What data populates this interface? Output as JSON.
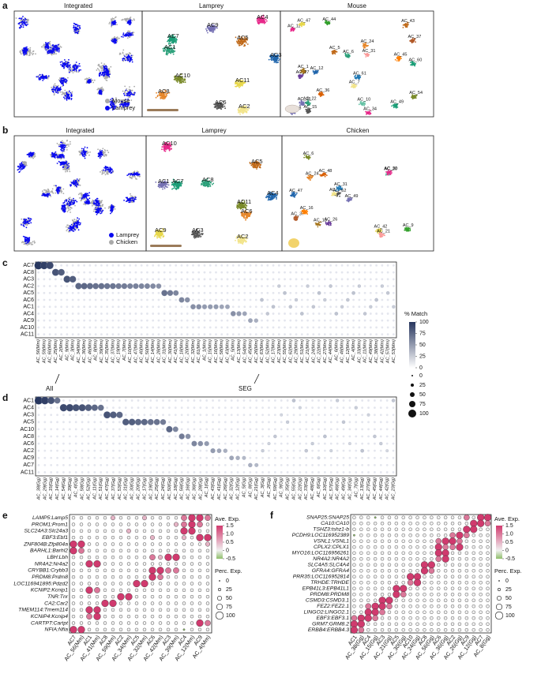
{
  "a": {
    "letter": "a",
    "titles": [
      "Integrated",
      "Lamprey",
      "Mouse"
    ],
    "legend": [
      "Mouse",
      "Lamprey"
    ],
    "lamprey_labels": [
      "AC4",
      "AC9",
      "AC7",
      "AC1",
      "AC5",
      "AC3",
      "AC10",
      "AC8",
      "AC11",
      "AC6",
      "AC2"
    ],
    "mouse_labels": [
      "AC_11",
      "AC_26",
      "AC_60",
      "AC_22",
      "AC_43",
      "AC_12",
      "AC_54",
      "AC_24",
      "AC_47",
      "AC_15",
      "AC_7",
      "AC_10",
      "AC_1",
      "AC_36",
      "AC_61",
      "AC_44",
      "AC_31",
      "AC_37",
      "AC_27",
      "AC_45",
      "AC_34",
      "AC_18",
      "AC_49",
      "AC_6",
      "AC_5"
    ]
  },
  "b": {
    "letter": "b",
    "titles": [
      "Integrated",
      "Lamprey",
      "Chicken"
    ],
    "legend": [
      "Lamprey",
      "Chicken"
    ],
    "lamprey_labels": [
      "AC10",
      "AC1",
      "AC7",
      "AC8",
      "AC5",
      "AC4",
      "AC11",
      "AC6",
      "AC9",
      "AC3",
      "AC2"
    ],
    "chicken_labels": [
      "AC_47",
      "AC_6",
      "AC_24",
      "AC_42",
      "AC_52",
      "AC_34",
      "AC_20",
      "AC_13",
      "AC_48",
      "AC_31",
      "AC_9",
      "AC_21",
      "AC_37",
      "AC_26",
      "AC_16",
      "AC_30",
      "AC_49"
    ]
  },
  "c": {
    "letter": "c",
    "rows": [
      "AC7",
      "AC8",
      "AC3",
      "AC2",
      "AC5",
      "AC6",
      "AC1",
      "AC4",
      "AC9",
      "AC10",
      "AC11"
    ],
    "columns": [
      "AC_56(Mm)",
      "AC_59(Mm)",
      "AC_60(Mm)",
      "AC_25(Mm)",
      "AC_2(Mm)",
      "AC_9(Mm)",
      "AC_3(Mm)",
      "AC_34(Mm)",
      "AC_36(Mm)",
      "AC_46(Mm)",
      "AC_8(Mm)",
      "AC_39(Mm)",
      "AC_35(Mm)",
      "AC_37(Mm)",
      "AC_19(Mm)",
      "AC_7(Mm)",
      "AC_10(Mm)",
      "AC_47(Mm)",
      "AC_40(Mm)",
      "AC_50(Mm)",
      "AC_14(Mm)",
      "AC_28(Mm)",
      "AC_31(Mm)",
      "AC_30(Mm)",
      "AC_41(Mm)",
      "AC_18(Mm)",
      "AC_20(Mm)",
      "AC_32(Mm)",
      "AC_61(Mm)",
      "AC_1(Mm)",
      "AC_15(Mm)",
      "AC_16(Mm)",
      "AC_58(Mm)",
      "AC_43(Mm)",
      "AC_5(Mm)",
      "AC_13(Mm)",
      "AC_54(Mm)",
      "AC_45(Mm)",
      "AC_26(Mm)",
      "AC_63(Mm)",
      "AC_52(Mm)",
      "AC_17(Mm)",
      "AC_23(Mm)",
      "AC_55(Mm)",
      "AC_62(Mm)",
      "AC_29(Mm)",
      "AC_51(Mm)",
      "AC_21(Mm)",
      "AC_24(Mm)",
      "AC_22(Mm)",
      "AC_27(Mm)",
      "AC_44(Mm)",
      "AC_6(Mm)",
      "AC_48(Mm)",
      "AC_12(Mm)",
      "AC_4(Mm)",
      "AC_33(Mm)",
      "AC_11(Mm)",
      "AC_49(Mm)",
      "AC_38(Mm)",
      "AC_42(Mm)",
      "AC_57(Mm)",
      "AC_53(Mm)"
    ],
    "rows_matched": [
      "AC7",
      "AC7",
      "AC7",
      "AC8",
      "AC8",
      "AC3",
      "AC3",
      "AC2",
      "AC2",
      "AC2",
      "AC2",
      "AC2",
      "AC2",
      "AC2",
      "AC2",
      "AC2",
      "AC2",
      "AC2",
      "AC2",
      "AC2",
      "AC2",
      "AC2",
      "AC5",
      "AC5",
      "AC5",
      "AC6",
      "AC6",
      "AC1",
      "AC1",
      "AC1",
      "AC1",
      "AC1",
      "AC1",
      "AC1",
      "AC4",
      "AC4",
      "AC4",
      "AC9",
      "AC9",
      "AC6",
      "AC4",
      "AC1",
      "AC2",
      "AC5",
      "AC1",
      "AC6",
      "AC4",
      "AC2",
      "AC1",
      "AC5",
      "AC6",
      "AC2",
      "AC4",
      "AC1",
      "AC6",
      "AC5",
      "AC2",
      "AC4",
      "AC1",
      "AC6",
      "AC2",
      "AC5",
      "AC1"
    ],
    "values": [
      100,
      95,
      90,
      85,
      80,
      85,
      80,
      75,
      75,
      72,
      70,
      70,
      68,
      68,
      65,
      65,
      62,
      62,
      60,
      60,
      58,
      55,
      70,
      65,
      60,
      60,
      55,
      55,
      55,
      50,
      50,
      50,
      45,
      45,
      55,
      50,
      45,
      45,
      40,
      30,
      28,
      30,
      25,
      30,
      28,
      25,
      30,
      25,
      28,
      30,
      25,
      28,
      30,
      25,
      28,
      30,
      25,
      28,
      25,
      30,
      25,
      28,
      25
    ],
    "legend_title": "% Match",
    "colorbar_ticks": [
      100,
      75,
      50,
      25,
      0
    ],
    "size_ticks": [
      0,
      25,
      50,
      75,
      100
    ],
    "annotations": [
      "AII",
      "SEG"
    ]
  },
  "d": {
    "letter": "d",
    "rows": [
      "AC1",
      "AC4",
      "AC3",
      "AC5",
      "AC10",
      "AC8",
      "AC6",
      "AC2",
      "AC9",
      "AC7",
      "AC11"
    ],
    "columns": [
      "AC_38(Gg)",
      "AC_29(Gg)",
      "AC_15(Gg)",
      "AC_14(Gg)",
      "AC_54(Gg)",
      "AC_39(Gg)",
      "AC_4(Gg)",
      "AC_58(Gg)",
      "AC_52(Gg)",
      "AC_11(Gg)",
      "AC_51(Gg)",
      "AC_47(Gg)",
      "AC_37(Gg)",
      "AC_53(Gg)",
      "AC_31(Gg)",
      "AC_30(Gg)",
      "AC_20(Gg)",
      "AC_17(Gg)",
      "AC_19(Gg)",
      "AC_25(Gg)",
      "AC_24(Gg)",
      "AC_50(Gg)",
      "AC_18(Gg)",
      "AC_56(Gg)",
      "AC_16(Gg)",
      "AC_36(Gg)",
      "AC_28(Gg)",
      "AC_1(Gg)",
      "AC_43(Gg)",
      "AC_41(Gg)",
      "AC_26(Gg)",
      "AC_32(Gg)",
      "AC_12(Gg)",
      "AC_5(Gg)",
      "AC_8(Gg)",
      "AC_21(Gg)",
      "AC_3(Gg)",
      "AC_2(Gg)",
      "AC_59(Gg)",
      "AC_9(Gg)",
      "AC_35(Gg)",
      "AC_55(Gg)",
      "AC_22(Gg)",
      "AC_33(Gg)",
      "AC_48(Gg)",
      "AC_6(Gg)",
      "AC_10(Gg)",
      "AC_57(Gg)",
      "AC_46(Gg)",
      "AC_49(Gg)",
      "AC_34(Gg)",
      "AC_7(Gg)",
      "AC_13(Gg)",
      "AC_27(Gg)",
      "AC_45(Gg)",
      "AC_44(Gg)",
      "AC_42(Gg)",
      "AC_23(Gg)"
    ],
    "rows_matched": [
      "AC1",
      "AC1",
      "AC1",
      "AC1",
      "AC4",
      "AC4",
      "AC4",
      "AC4",
      "AC4",
      "AC4",
      "AC4",
      "AC3",
      "AC3",
      "AC3",
      "AC5",
      "AC5",
      "AC5",
      "AC5",
      "AC5",
      "AC5",
      "AC5",
      "AC10",
      "AC10",
      "AC8",
      "AC8",
      "AC6",
      "AC6",
      "AC6",
      "AC2",
      "AC2",
      "AC2",
      "AC9",
      "AC9",
      "AC9",
      "AC7",
      "AC7",
      "AC2",
      "AC6",
      "AC8",
      "AC3",
      "AC5",
      "AC1",
      "AC4",
      "AC2",
      "AC6",
      "AC9",
      "AC8",
      "AC2",
      "AC1",
      "AC5",
      "AC6",
      "AC4",
      "AC2",
      "AC3",
      "AC8",
      "AC6",
      "AC2",
      "AC1"
    ],
    "values": [
      100,
      95,
      85,
      70,
      90,
      90,
      85,
      85,
      80,
      75,
      70,
      85,
      80,
      75,
      80,
      80,
      75,
      75,
      70,
      70,
      65,
      75,
      60,
      65,
      55,
      60,
      55,
      50,
      50,
      45,
      40,
      45,
      40,
      35,
      40,
      35,
      25,
      22,
      28,
      20,
      25,
      30,
      22,
      28,
      25,
      20,
      30,
      22,
      25,
      28,
      20,
      25,
      30,
      22,
      28,
      25,
      20,
      28
    ]
  },
  "e": {
    "letter": "e",
    "genes": [
      "LAMP5:Lamp5",
      "PROM1:Prom1",
      "SLC24A3:Slc24a3",
      "EBF3:Ebf1",
      "ZNF804B:Zfp804a",
      "BARHL1:Barhl2",
      "LBH:Lbh",
      "NR4A2:Nr4a2",
      "CRYBB1:Crybb3",
      "PRDM8:Prdm8",
      "LOC116941895:Pdzd2",
      "KCNIP2:Kcnip1",
      "TNR:Tnr",
      "CA2:Car2",
      "TMEM114:Tmem114",
      "KCNIP4:Kcnip4",
      "CARTPT:Cartpt",
      "NFIA:Nfia"
    ],
    "columns": [
      "AC7",
      "AC_56(Mm)",
      "AC1",
      "AC_41(Mm)",
      "AC8",
      "AC_59(Mm)",
      "AC2",
      "AC_34(Mm)",
      "AC5",
      "AC_32(Mm)",
      "AC6",
      "AC_42(Mm)",
      "AC3",
      "AC_39(Mm)",
      "AC4",
      "AC_12(Mm)",
      "AC9",
      "AC_4(Mm)"
    ],
    "values": [
      [
        0,
        0,
        0,
        0,
        0,
        0.5,
        0,
        0,
        0,
        0.5,
        0,
        0,
        0,
        0,
        1,
        1.5,
        1.5,
        1
      ],
      [
        0,
        0,
        0,
        0,
        0,
        0,
        0,
        0,
        0,
        0,
        0,
        0,
        0,
        0.5,
        1,
        1.5,
        1,
        0
      ],
      [
        0,
        0,
        0,
        0,
        0,
        0,
        0,
        0.5,
        0,
        0,
        0,
        0,
        0,
        0,
        1.5,
        1.5,
        0,
        0
      ],
      [
        0,
        0,
        0,
        0,
        0,
        0,
        0,
        0,
        0,
        0,
        0.5,
        0,
        0,
        0,
        0.5,
        0,
        1.5,
        1.5
      ],
      [
        1.5,
        1.5,
        0,
        0,
        0,
        0,
        0,
        0,
        0,
        0,
        0,
        0,
        0,
        0,
        0,
        0,
        0,
        0.5
      ],
      [
        1.5,
        1,
        0,
        0,
        0,
        0,
        0,
        0,
        0,
        0,
        0,
        0,
        0,
        0,
        0,
        0,
        0,
        0
      ],
      [
        0,
        0,
        0,
        0,
        0,
        0,
        0,
        0,
        0,
        0,
        1,
        0.5,
        1.5,
        1.5,
        0,
        0,
        0,
        0
      ],
      [
        0,
        0,
        1.5,
        1.5,
        0,
        0,
        0,
        0,
        0,
        0,
        0,
        0,
        0,
        0,
        0,
        0,
        0,
        0
      ],
      [
        0,
        0,
        0,
        0,
        0,
        0,
        0,
        0,
        0,
        0,
        1.5,
        1.5,
        1,
        1,
        0,
        0,
        0,
        0
      ],
      [
        0,
        0,
        0,
        0,
        0,
        0,
        0,
        0,
        0,
        0,
        1.5,
        1,
        0,
        0,
        0,
        0,
        0,
        0
      ],
      [
        0,
        0,
        0,
        0,
        0,
        0,
        0,
        0,
        1.5,
        1.5,
        0,
        0,
        0,
        0,
        0,
        0,
        0,
        0
      ],
      [
        0,
        0,
        1.5,
        1,
        0,
        0,
        0,
        0,
        0,
        0,
        0,
        0,
        0,
        0,
        0,
        0,
        0,
        0
      ],
      [
        0,
        0,
        0,
        0,
        0,
        0,
        1.5,
        1.5,
        0,
        0,
        0,
        0,
        0,
        0,
        0,
        0,
        0,
        0
      ],
      [
        0,
        0,
        0,
        0,
        1.5,
        1.5,
        0,
        0,
        0,
        0,
        0,
        0,
        0,
        0,
        0,
        0,
        0,
        0
      ],
      [
        0,
        0,
        1.5,
        1.5,
        0,
        0,
        0,
        0,
        0,
        0,
        0,
        0,
        0,
        0,
        0,
        0,
        0,
        0
      ],
      [
        0,
        0,
        1,
        1.5,
        0,
        0,
        0,
        0,
        0,
        0,
        0,
        0,
        0,
        0,
        0,
        0,
        0,
        0
      ],
      [
        0,
        0,
        0,
        0,
        0,
        0,
        0,
        0,
        0,
        0,
        0,
        0,
        0,
        0,
        0,
        0,
        1.5,
        1
      ],
      [
        1.5,
        1.5,
        0,
        0,
        0,
        0,
        0,
        0,
        0,
        0,
        0,
        0,
        0,
        0,
        -0.5,
        0,
        0,
        0
      ]
    ],
    "legend_title": "Ave. Exp.",
    "color_ticks": [
      1.5,
      {
        "value": 1.0,
        "label": "1.0"
      },
      0.5,
      0,
      -0.5
    ],
    "size_title": "Perc. Exp.",
    "size_ticks": [
      0,
      25,
      50,
      75,
      100
    ]
  },
  "f": {
    "letter": "f",
    "genes": [
      "SNAP25:SNAP25",
      "CA10:CA10",
      "TSHZ3:tshz1-b",
      "PCDH9:LOC116952389",
      "VSNL1:VSNL1",
      "CPLX2:CPLX1",
      "MYO16:LOC116956261",
      "NR4A2:NR4A2",
      "SLC4A5:SLC4A4",
      "GFRA4:GFRA4",
      "PRR35:LOC116952814",
      "TRHDE:TRHDE",
      "EPB41L3:EPB41L1",
      "PRDM8:PRDM8",
      "CSMD3:CSMD3.1",
      "FEZ2:FEZ2.1",
      "LINGO2:LINGO2.1",
      "EBF3:EBF3.1",
      "GRM7:GRM8.2",
      "ERBB4:ERBB4.3"
    ],
    "columns": [
      "AC1",
      "AC_38(Gg)",
      "AC4",
      "AC_15(Gg)",
      "AC3",
      "AC_21(Gg)",
      "AC5",
      "AC_30(Gg)",
      "AC10",
      "AC_24(Gg)",
      "AC8",
      "AC_56(Gg)",
      "AC6",
      "AC_36(Gg)",
      "AC2",
      "AC_26(Gg)",
      "AC9",
      "AC_12(Gg)",
      "AC7",
      "AC_8(Gg)"
    ],
    "values": [
      [
        0,
        0,
        0,
        -0.5,
        0,
        0,
        0,
        0,
        0,
        0,
        0,
        0,
        0,
        0,
        0,
        0,
        1,
        0,
        1.5,
        1.5
      ],
      [
        0,
        0,
        0,
        0,
        0,
        0,
        0,
        0,
        0,
        0,
        0,
        0,
        0,
        0,
        0,
        0,
        0,
        1.5,
        1.5,
        1
      ],
      [
        0,
        0,
        0,
        0,
        0,
        0,
        0,
        0,
        0,
        0,
        0,
        0,
        0,
        0,
        0,
        0,
        1.5,
        1.5,
        0,
        0
      ],
      [
        -0.5,
        0,
        0,
        0,
        0,
        0,
        0,
        0,
        0,
        0,
        0,
        0,
        0,
        0,
        1,
        1.5,
        1,
        0,
        0,
        0
      ],
      [
        0,
        0,
        0,
        0,
        0,
        0,
        0,
        0,
        0,
        0,
        0,
        0,
        1,
        1.5,
        1.5,
        1,
        0,
        0,
        0,
        0
      ],
      [
        0,
        0,
        0,
        0,
        0,
        0,
        0,
        0,
        0,
        0,
        0,
        0,
        1.5,
        1,
        1,
        1.5,
        0,
        0,
        0,
        0
      ],
      [
        0,
        0,
        0,
        0,
        0,
        0,
        0,
        0,
        0,
        0,
        0,
        0,
        1.5,
        1.5,
        0,
        0,
        0,
        0,
        0,
        0
      ],
      [
        0,
        0,
        0,
        0,
        0,
        0,
        0,
        0,
        0,
        0,
        0,
        0,
        1,
        1.5,
        0,
        0,
        0,
        0,
        0,
        0
      ],
      [
        0,
        0,
        0,
        0,
        0,
        0,
        0,
        0,
        0,
        0,
        1.5,
        1.5,
        0,
        0,
        0,
        0,
        0,
        0,
        0,
        0
      ],
      [
        0,
        0,
        0,
        0,
        0,
        0,
        0,
        0,
        0,
        0,
        1.5,
        1,
        0,
        0,
        0,
        0,
        0,
        0,
        0,
        0
      ],
      [
        0,
        0,
        0,
        0,
        0,
        0,
        0,
        0,
        1.5,
        1.5,
        0,
        0,
        0,
        0,
        0,
        0,
        0,
        0,
        0,
        0
      ],
      [
        0,
        0,
        0,
        0,
        0,
        0,
        0,
        0,
        1,
        1.5,
        0,
        0,
        0,
        0,
        0,
        0,
        0,
        0,
        0,
        0
      ],
      [
        0,
        0,
        0,
        0,
        0,
        0,
        1.5,
        1.5,
        0,
        0,
        0,
        0,
        0,
        0,
        0,
        0,
        0,
        0,
        0,
        0
      ],
      [
        0,
        0,
        0,
        0,
        0,
        0,
        1.5,
        1,
        0,
        0,
        0,
        0,
        0,
        0,
        0,
        0,
        0,
        0,
        0,
        0
      ],
      [
        0,
        0,
        0,
        0,
        1.5,
        1.5,
        0,
        0,
        0,
        0,
        0,
        0,
        0,
        0,
        0,
        0,
        0,
        0,
        0,
        0
      ],
      [
        0,
        0,
        1,
        1.5,
        1.5,
        1,
        0,
        0,
        0,
        0,
        0,
        0,
        0,
        0,
        0,
        0,
        0,
        0,
        0,
        0
      ],
      [
        0,
        0,
        1.5,
        1.5,
        1,
        0,
        0,
        0,
        0,
        0,
        0,
        0,
        0,
        0,
        0,
        0,
        0,
        0,
        0,
        0
      ],
      [
        1,
        1.5,
        1.5,
        1,
        0,
        0,
        0,
        0,
        0,
        0,
        0,
        0,
        0,
        0,
        0,
        0,
        0,
        0,
        0,
        0
      ],
      [
        1.5,
        1.5,
        0,
        0,
        0,
        0,
        0,
        0,
        0,
        0,
        0,
        0,
        0,
        0,
        0,
        0,
        0,
        0,
        0,
        0
      ],
      [
        1.5,
        1,
        0,
        0,
        0,
        0,
        0,
        0,
        0,
        0,
        0,
        0,
        0,
        0,
        0,
        0,
        0,
        0,
        0,
        0
      ]
    ],
    "legend_title": "Ave. Exp.",
    "color_ticks": [
      1.5,
      {
        "value": 1.0,
        "label": "1.0"
      },
      0.5,
      0,
      -0.5
    ],
    "size_title": "Perc. Exp.",
    "size_ticks": [
      0,
      25,
      50,
      75,
      100
    ]
  }
}
